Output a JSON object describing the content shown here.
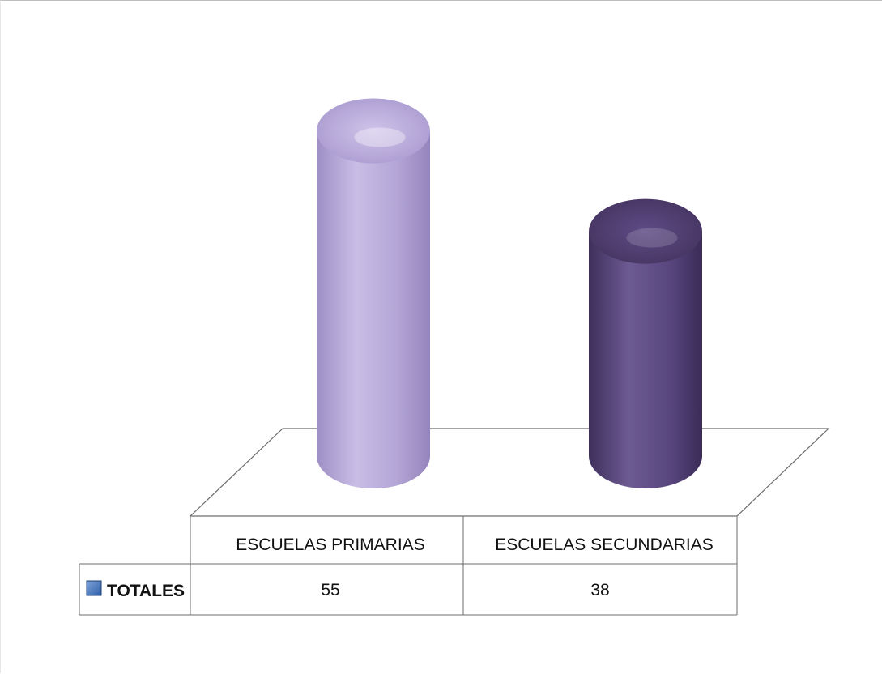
{
  "chart_data": {
    "type": "bar",
    "title": "",
    "xlabel": "",
    "ylabel": "",
    "categories": [
      "ESCUELAS PRIMARIAS",
      "ESCUELAS SECUNDARIAS"
    ],
    "series": [
      {
        "name": "TOTALES",
        "values": [
          55,
          38
        ],
        "color": "#6a5a8f"
      }
    ],
    "bar_colors": [
      "#b7a9d8",
      "#5e4a80"
    ],
    "ylim": [
      0,
      60
    ],
    "grid": false,
    "legend": "data-table",
    "style": "3d-cylinder"
  }
}
